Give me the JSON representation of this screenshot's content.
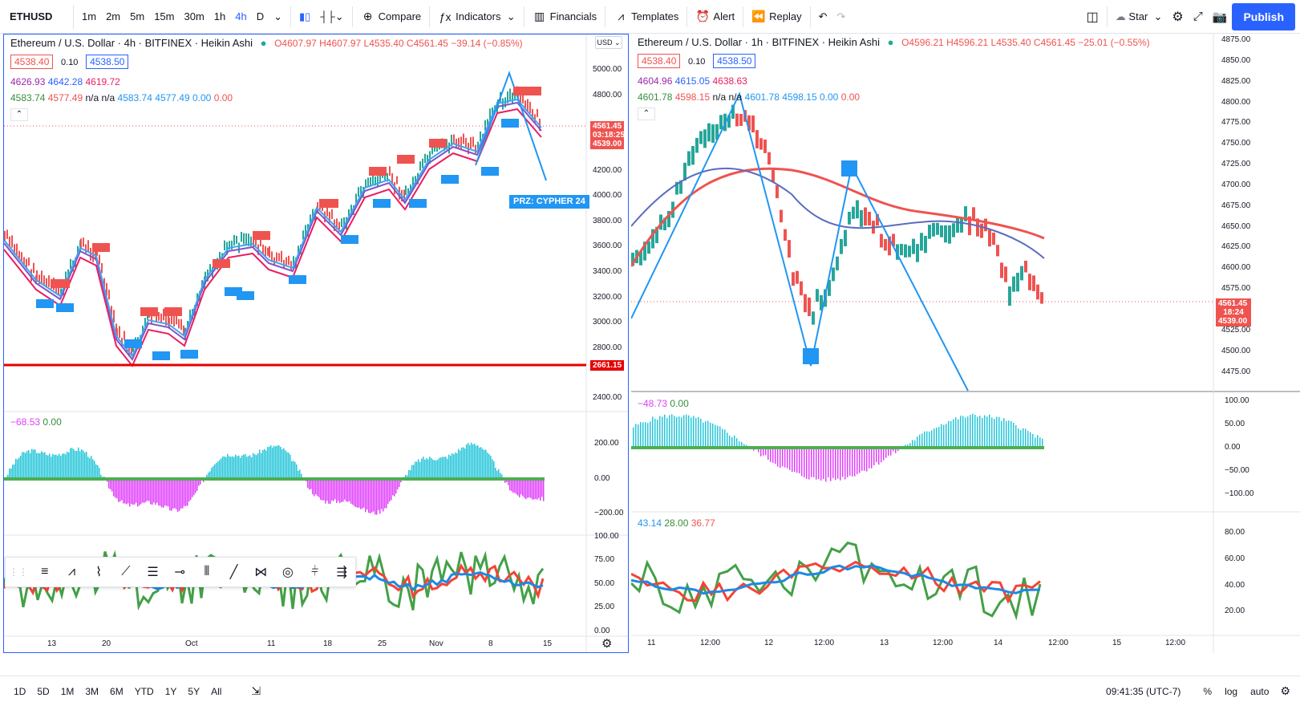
{
  "toolbar": {
    "symbol": "ETHUSD",
    "intervals": [
      "1m",
      "2m",
      "5m",
      "15m",
      "30m",
      "1h",
      "4h",
      "D"
    ],
    "active_interval": "4h",
    "compare": "Compare",
    "indicators": "Indicators",
    "financials": "Financials",
    "templates": "Templates",
    "alert": "Alert",
    "replay": "Replay",
    "star": "Star",
    "publish": "Publish"
  },
  "left_chart": {
    "title": "Ethereum / U.S. Dollar · 4h · BITFINEX · Heikin Ashi",
    "ohlc": "O4607.97 H4607.97 L4535.40 C4561.45 −39.14 (−0.85%)",
    "bid": "4538.40",
    "spread": "0.10",
    "ask": "4538.50",
    "ind1": [
      "4626.93",
      "4642.28",
      "4619.72"
    ],
    "ind2": [
      "4583.74",
      "4577.49",
      "n/a",
      "n/a",
      "4583.74",
      "4577.49",
      "0.00",
      "0.00"
    ],
    "currency": "USD",
    "price_axis": [
      "5000.00",
      "4800.00",
      "4400.00",
      "4200.00",
      "4000.00",
      "3800.00",
      "3600.00",
      "3400.00",
      "3200.00",
      "3000.00",
      "2800.00",
      "2400.00"
    ],
    "last_price": "4561.45",
    "countdown": "03:18:25",
    "bid_tag": "4539.00",
    "hline_price": "2661.15",
    "prz_label": "PRZ: CYPHER 24",
    "osc_legend": [
      "−68.53",
      "0.00"
    ],
    "osc_axis": [
      "200.00",
      "0.00",
      "−200.00"
    ],
    "rsi_axis": [
      "100.00",
      "75.00",
      "50.00",
      "25.00",
      "0.00"
    ],
    "time_axis": [
      "13",
      "20",
      "Oct",
      "11",
      "18",
      "25",
      "Nov",
      "8",
      "15"
    ]
  },
  "right_chart": {
    "title": "Ethereum / U.S. Dollar · 1h · BITFINEX · Heikin Ashi",
    "ohlc": "O4596.21 H4596.21 L4535.40 C4561.45 −25.01 (−0.55%)",
    "bid": "4538.40",
    "spread": "0.10",
    "ask": "4538.50",
    "ind1": [
      "4604.96",
      "4615.05",
      "4638.63"
    ],
    "ind2": [
      "4601.78",
      "4598.15",
      "n/a",
      "n/a",
      "4601.78",
      "4598.15",
      "0.00",
      "0.00"
    ],
    "price_axis": [
      "4875.00",
      "4850.00",
      "4825.00",
      "4800.00",
      "4775.00",
      "4750.00",
      "4725.00",
      "4700.00",
      "4675.00",
      "4650.00",
      "4625.00",
      "4600.00",
      "4575.00",
      "4525.00",
      "4500.00",
      "4475.00"
    ],
    "last_price": "4561.45",
    "countdown": "18:24",
    "bid_tag": "4539.00",
    "osc_legend": [
      "−48.73",
      "0.00"
    ],
    "osc_axis": [
      "100.00",
      "50.00",
      "0.00",
      "−50.00",
      "−100.00"
    ],
    "rsi_legend": [
      "43.14",
      "28.00",
      "36.77"
    ],
    "rsi_axis": [
      "80.00",
      "60.00",
      "40.00",
      "20.00"
    ],
    "time_axis": [
      "11",
      "12:00",
      "12",
      "12:00",
      "13",
      "12:00",
      "14",
      "12:00",
      "15",
      "12:00"
    ]
  },
  "bottom": {
    "ranges": [
      "1D",
      "5D",
      "1M",
      "3M",
      "6M",
      "YTD",
      "1Y",
      "5Y",
      "All"
    ],
    "time": "09:41:35 (UTC-7)",
    "percent": "%",
    "log": "log",
    "auto": "auto"
  }
}
